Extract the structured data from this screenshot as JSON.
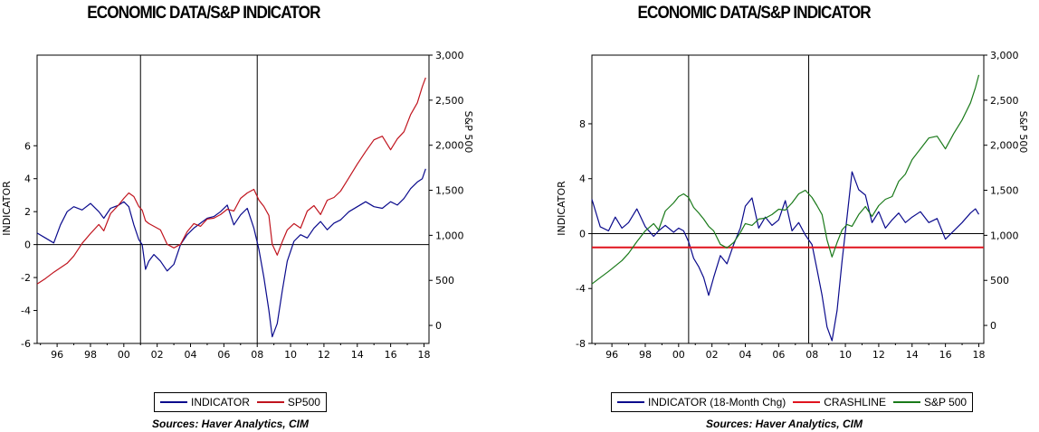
{
  "chart_data": [
    {
      "type": "line",
      "title": "ECONOMIC DATA/S&P INDICATOR",
      "ylabel": "INDICATOR",
      "y2label": "S&P 500",
      "xlim": [
        1994.8,
        2018.3
      ],
      "ylim": [
        -6,
        11.5
      ],
      "y2lim": [
        -200,
        3000
      ],
      "x_ticks": [
        1996,
        1998,
        2000,
        2002,
        2004,
        2006,
        2008,
        2010,
        2012,
        2014,
        2016,
        2018
      ],
      "x_tick_labels": [
        "96",
        "98",
        "00",
        "02",
        "04",
        "06",
        "08",
        "10",
        "12",
        "14",
        "16",
        "18"
      ],
      "y_ticks": [
        -6,
        -4,
        -2,
        0,
        2,
        4,
        6
      ],
      "y_tick_labels": [
        "-6",
        "-4",
        "-2",
        "0",
        "2",
        "4",
        "6"
      ],
      "y2_ticks": [
        0,
        500,
        1000,
        1500,
        2000,
        2500,
        3000
      ],
      "y2_tick_labels": [
        "0",
        "500",
        "1,000",
        "1,500",
        "2,000",
        "2,500",
        "3,000"
      ],
      "hline": 0,
      "vlines": [
        2001.0,
        2008.0
      ],
      "legend_position": "bottom",
      "source": "Sources:  Haver Analytics, CIM",
      "series": [
        {
          "name": "INDICATOR",
          "axis": "left",
          "color": "#0a0a8c",
          "x": [
            1994.8,
            1995.3,
            1995.8,
            1996.2,
            1996.6,
            1997.0,
            1997.5,
            1998.0,
            1998.5,
            1998.8,
            1999.2,
            1999.7,
            2000.0,
            2000.3,
            2000.6,
            2000.9,
            2001.1,
            2001.3,
            2001.5,
            2001.8,
            2002.2,
            2002.6,
            2003.0,
            2003.4,
            2003.8,
            2004.2,
            2004.6,
            2005.0,
            2005.4,
            2005.8,
            2006.2,
            2006.6,
            2007.0,
            2007.4,
            2007.8,
            2008.1,
            2008.4,
            2008.7,
            2008.9,
            2009.2,
            2009.5,
            2009.8,
            2010.2,
            2010.6,
            2011.0,
            2011.4,
            2011.8,
            2012.2,
            2012.6,
            2013.0,
            2013.5,
            2014.0,
            2014.5,
            2015.0,
            2015.5,
            2016.0,
            2016.4,
            2016.8,
            2017.2,
            2017.6,
            2017.9,
            2018.1
          ],
          "y": [
            0.7,
            0.4,
            0.1,
            1.2,
            2.0,
            2.3,
            2.1,
            2.5,
            2.0,
            1.6,
            2.2,
            2.4,
            2.6,
            2.3,
            1.2,
            0.3,
            0.0,
            -1.5,
            -1.0,
            -0.6,
            -1.0,
            -1.6,
            -1.2,
            0.0,
            0.6,
            1.0,
            1.3,
            1.6,
            1.7,
            2.0,
            2.4,
            1.2,
            1.8,
            2.2,
            1.0,
            -0.3,
            -2.0,
            -4.0,
            -5.6,
            -4.8,
            -2.8,
            -1.0,
            0.2,
            0.6,
            0.4,
            1.0,
            1.4,
            0.9,
            1.3,
            1.5,
            2.0,
            2.3,
            2.6,
            2.3,
            2.2,
            2.6,
            2.4,
            2.8,
            3.4,
            3.8,
            4.0,
            4.6
          ]
        },
        {
          "name": "SP500",
          "axis": "right",
          "color": "#c0141e",
          "x": [
            1994.8,
            1995.3,
            1995.8,
            1996.2,
            1996.6,
            1997.0,
            1997.5,
            1998.0,
            1998.5,
            1998.8,
            1999.2,
            1999.7,
            2000.0,
            2000.3,
            2000.6,
            2000.9,
            2001.1,
            2001.3,
            2001.5,
            2001.8,
            2002.2,
            2002.6,
            2003.0,
            2003.4,
            2003.8,
            2004.2,
            2004.6,
            2005.0,
            2005.4,
            2005.8,
            2006.2,
            2006.6,
            2007.0,
            2007.4,
            2007.8,
            2008.1,
            2008.4,
            2008.7,
            2008.9,
            2009.2,
            2009.5,
            2009.8,
            2010.2,
            2010.6,
            2011.0,
            2011.4,
            2011.8,
            2012.2,
            2012.6,
            2013.0,
            2013.5,
            2014.0,
            2014.5,
            2015.0,
            2015.5,
            2016.0,
            2016.4,
            2016.8,
            2017.2,
            2017.6,
            2017.9,
            2018.1
          ],
          "y": [
            460,
            520,
            590,
            640,
            690,
            770,
            910,
            1020,
            1120,
            1050,
            1240,
            1340,
            1410,
            1470,
            1430,
            1320,
            1280,
            1160,
            1130,
            1100,
            1060,
            900,
            860,
            900,
            1040,
            1130,
            1100,
            1180,
            1190,
            1230,
            1290,
            1270,
            1410,
            1470,
            1510,
            1390,
            1320,
            1220,
            900,
            780,
            930,
            1060,
            1130,
            1080,
            1270,
            1330,
            1230,
            1390,
            1420,
            1490,
            1640,
            1790,
            1930,
            2060,
            2100,
            1950,
            2070,
            2150,
            2340,
            2470,
            2650,
            2750
          ]
        }
      ]
    },
    {
      "type": "line",
      "title": "ECONOMIC DATA/S&P INDICATOR",
      "ylabel": "INDICATOR",
      "y2label": "S&P 500",
      "xlim": [
        1994.8,
        2018.3
      ],
      "ylim": [
        -8,
        13
      ],
      "y2lim": [
        -200,
        3000
      ],
      "x_ticks": [
        1996,
        1998,
        2000,
        2002,
        2004,
        2006,
        2008,
        2010,
        2012,
        2014,
        2016,
        2018
      ],
      "x_tick_labels": [
        "96",
        "98",
        "00",
        "02",
        "04",
        "06",
        "08",
        "10",
        "12",
        "14",
        "16",
        "18"
      ],
      "y_ticks": [
        -8,
        -4,
        0,
        4,
        8
      ],
      "y_tick_labels": [
        "-8",
        "-4",
        "0",
        "4",
        "8"
      ],
      "y2_ticks": [
        0,
        500,
        1000,
        1500,
        2000,
        2500,
        3000
      ],
      "y2_tick_labels": [
        "0",
        "500",
        "1,000",
        "1,500",
        "2,000",
        "2,500",
        "3,000"
      ],
      "hline": 0,
      "vlines": [
        2000.6,
        2007.8
      ],
      "legend_position": "bottom",
      "source": "Sources:  Haver Analytics, CIM",
      "series": [
        {
          "name": "INDICATOR (18-Month Chg)",
          "axis": "left",
          "color": "#0a0a8c",
          "x": [
            1994.8,
            1995.3,
            1995.8,
            1996.2,
            1996.6,
            1997.0,
            1997.5,
            1998.0,
            1998.5,
            1998.8,
            1999.2,
            1999.7,
            2000.0,
            2000.3,
            2000.6,
            2000.9,
            2001.2,
            2001.5,
            2001.8,
            2002.1,
            2002.5,
            2002.9,
            2003.3,
            2003.7,
            2004.0,
            2004.4,
            2004.8,
            2005.2,
            2005.6,
            2006.0,
            2006.4,
            2006.8,
            2007.2,
            2007.6,
            2008.0,
            2008.3,
            2008.6,
            2008.9,
            2009.2,
            2009.5,
            2009.8,
            2010.1,
            2010.4,
            2010.8,
            2011.2,
            2011.6,
            2012.0,
            2012.4,
            2012.8,
            2013.2,
            2013.6,
            2014.0,
            2014.5,
            2015.0,
            2015.5,
            2016.0,
            2016.5,
            2017.0,
            2017.5,
            2017.8,
            2018.0
          ],
          "y": [
            2.5,
            0.5,
            0.2,
            1.2,
            0.4,
            0.8,
            1.8,
            0.5,
            -0.2,
            0.2,
            0.6,
            0.1,
            0.4,
            0.2,
            -0.6,
            -1.8,
            -2.4,
            -3.2,
            -4.5,
            -3.2,
            -1.6,
            -2.2,
            -0.8,
            0.4,
            2.0,
            2.6,
            0.4,
            1.2,
            0.6,
            1.0,
            2.4,
            0.2,
            0.8,
            -0.1,
            -0.8,
            -2.6,
            -4.5,
            -6.8,
            -7.8,
            -5.6,
            -2.0,
            1.2,
            4.5,
            3.2,
            2.8,
            0.8,
            1.6,
            0.4,
            1.0,
            1.5,
            0.8,
            1.2,
            1.6,
            0.8,
            1.1,
            -0.4,
            0.2,
            0.8,
            1.5,
            1.8,
            1.4
          ]
        },
        {
          "name": "CRASHLINE",
          "axis": "left",
          "color": "#e0141e",
          "x": [
            1994.8,
            2018.3
          ],
          "y": [
            -1.0,
            -1.0
          ]
        },
        {
          "name": "S&P 500",
          "axis": "right",
          "color": "#1a7a1a",
          "x": [
            1994.8,
            1995.3,
            1995.8,
            1996.2,
            1996.6,
            1997.0,
            1997.5,
            1998.0,
            1998.5,
            1998.8,
            1999.2,
            1999.7,
            2000.0,
            2000.3,
            2000.6,
            2000.9,
            2001.2,
            2001.5,
            2001.8,
            2002.1,
            2002.5,
            2002.9,
            2003.3,
            2003.7,
            2004.0,
            2004.4,
            2004.8,
            2005.2,
            2005.6,
            2006.0,
            2006.4,
            2006.8,
            2007.2,
            2007.6,
            2008.0,
            2008.3,
            2008.6,
            2008.9,
            2009.2,
            2009.5,
            2009.8,
            2010.1,
            2010.4,
            2010.8,
            2011.2,
            2011.6,
            2012.0,
            2012.4,
            2012.8,
            2013.2,
            2013.6,
            2014.0,
            2014.5,
            2015.0,
            2015.5,
            2016.0,
            2016.5,
            2017.0,
            2017.5,
            2017.8,
            2018.0
          ],
          "y": [
            460,
            530,
            600,
            660,
            720,
            800,
            930,
            1050,
            1130,
            1060,
            1270,
            1360,
            1430,
            1460,
            1420,
            1310,
            1250,
            1180,
            1100,
            1050,
            900,
            860,
            920,
            1030,
            1130,
            1110,
            1180,
            1190,
            1230,
            1290,
            1280,
            1360,
            1460,
            1500,
            1420,
            1330,
            1230,
            950,
            760,
            920,
            1060,
            1120,
            1100,
            1230,
            1320,
            1210,
            1330,
            1400,
            1430,
            1600,
            1680,
            1840,
            1960,
            2080,
            2100,
            1960,
            2130,
            2280,
            2470,
            2640,
            2780
          ]
        }
      ]
    }
  ]
}
